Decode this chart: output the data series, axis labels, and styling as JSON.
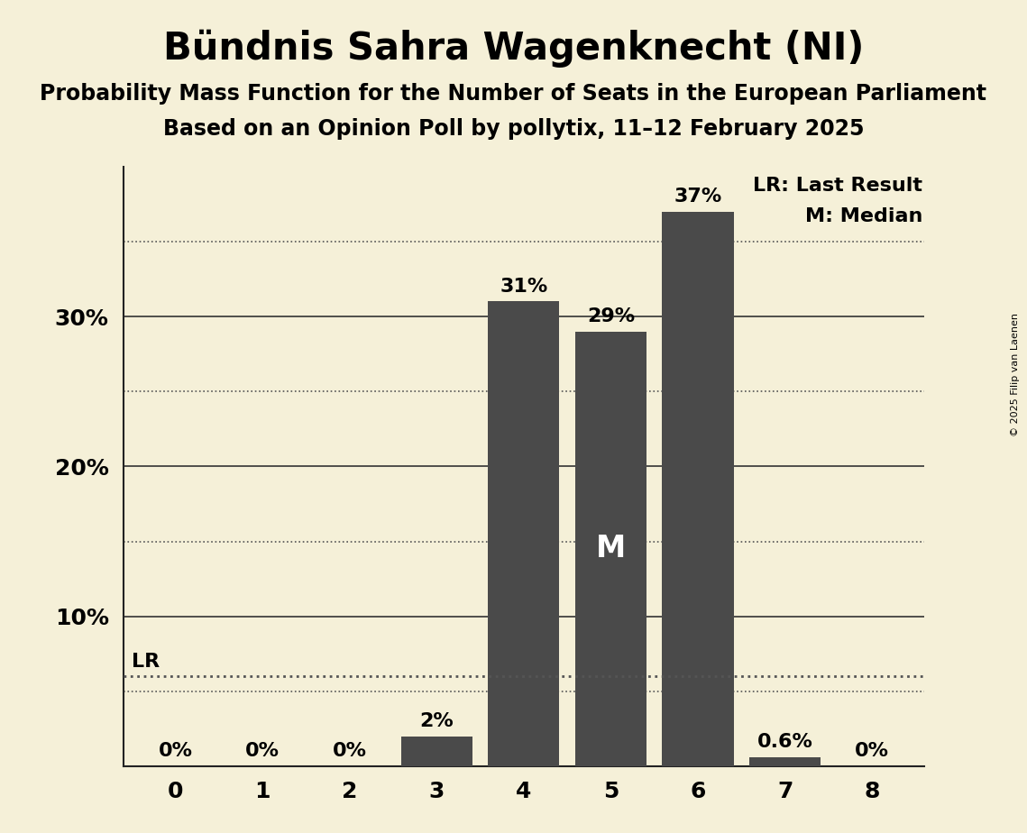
{
  "title": "Bündnis Sahra Wagenknecht (NI)",
  "subtitle1": "Probability Mass Function for the Number of Seats in the European Parliament",
  "subtitle2": "Based on an Opinion Poll by pollytix, 11–12 February 2025",
  "copyright": "© 2025 Filip van Laenen",
  "categories": [
    0,
    1,
    2,
    3,
    4,
    5,
    6,
    7,
    8
  ],
  "values": [
    0.0,
    0.0,
    0.0,
    0.02,
    0.31,
    0.29,
    0.37,
    0.006,
    0.0
  ],
  "labels": [
    "0%",
    "0%",
    "0%",
    "2%",
    "31%",
    "29%",
    "37%",
    "0.6%",
    "0%"
  ],
  "bar_color": "#4a4a4a",
  "background_color": "#f5f0d8",
  "median_bar": 5,
  "median_label": "M",
  "lr_value": 0.06,
  "lr_label": "LR",
  "lr_line_color": "#555555",
  "legend_lr": "LR: Last Result",
  "legend_m": "M: Median",
  "ylim": [
    0,
    0.4
  ],
  "title_fontsize": 30,
  "subtitle_fontsize": 17,
  "label_fontsize": 16,
  "tick_fontsize": 18,
  "legend_fontsize": 16,
  "solid_gridlines": [
    0.1,
    0.2,
    0.3
  ],
  "dotted_gridlines": [
    0.05,
    0.15,
    0.25,
    0.35
  ],
  "ytick_positions": [
    0.1,
    0.2,
    0.3
  ],
  "ytick_labels": [
    "10%",
    "20%",
    "30%"
  ]
}
